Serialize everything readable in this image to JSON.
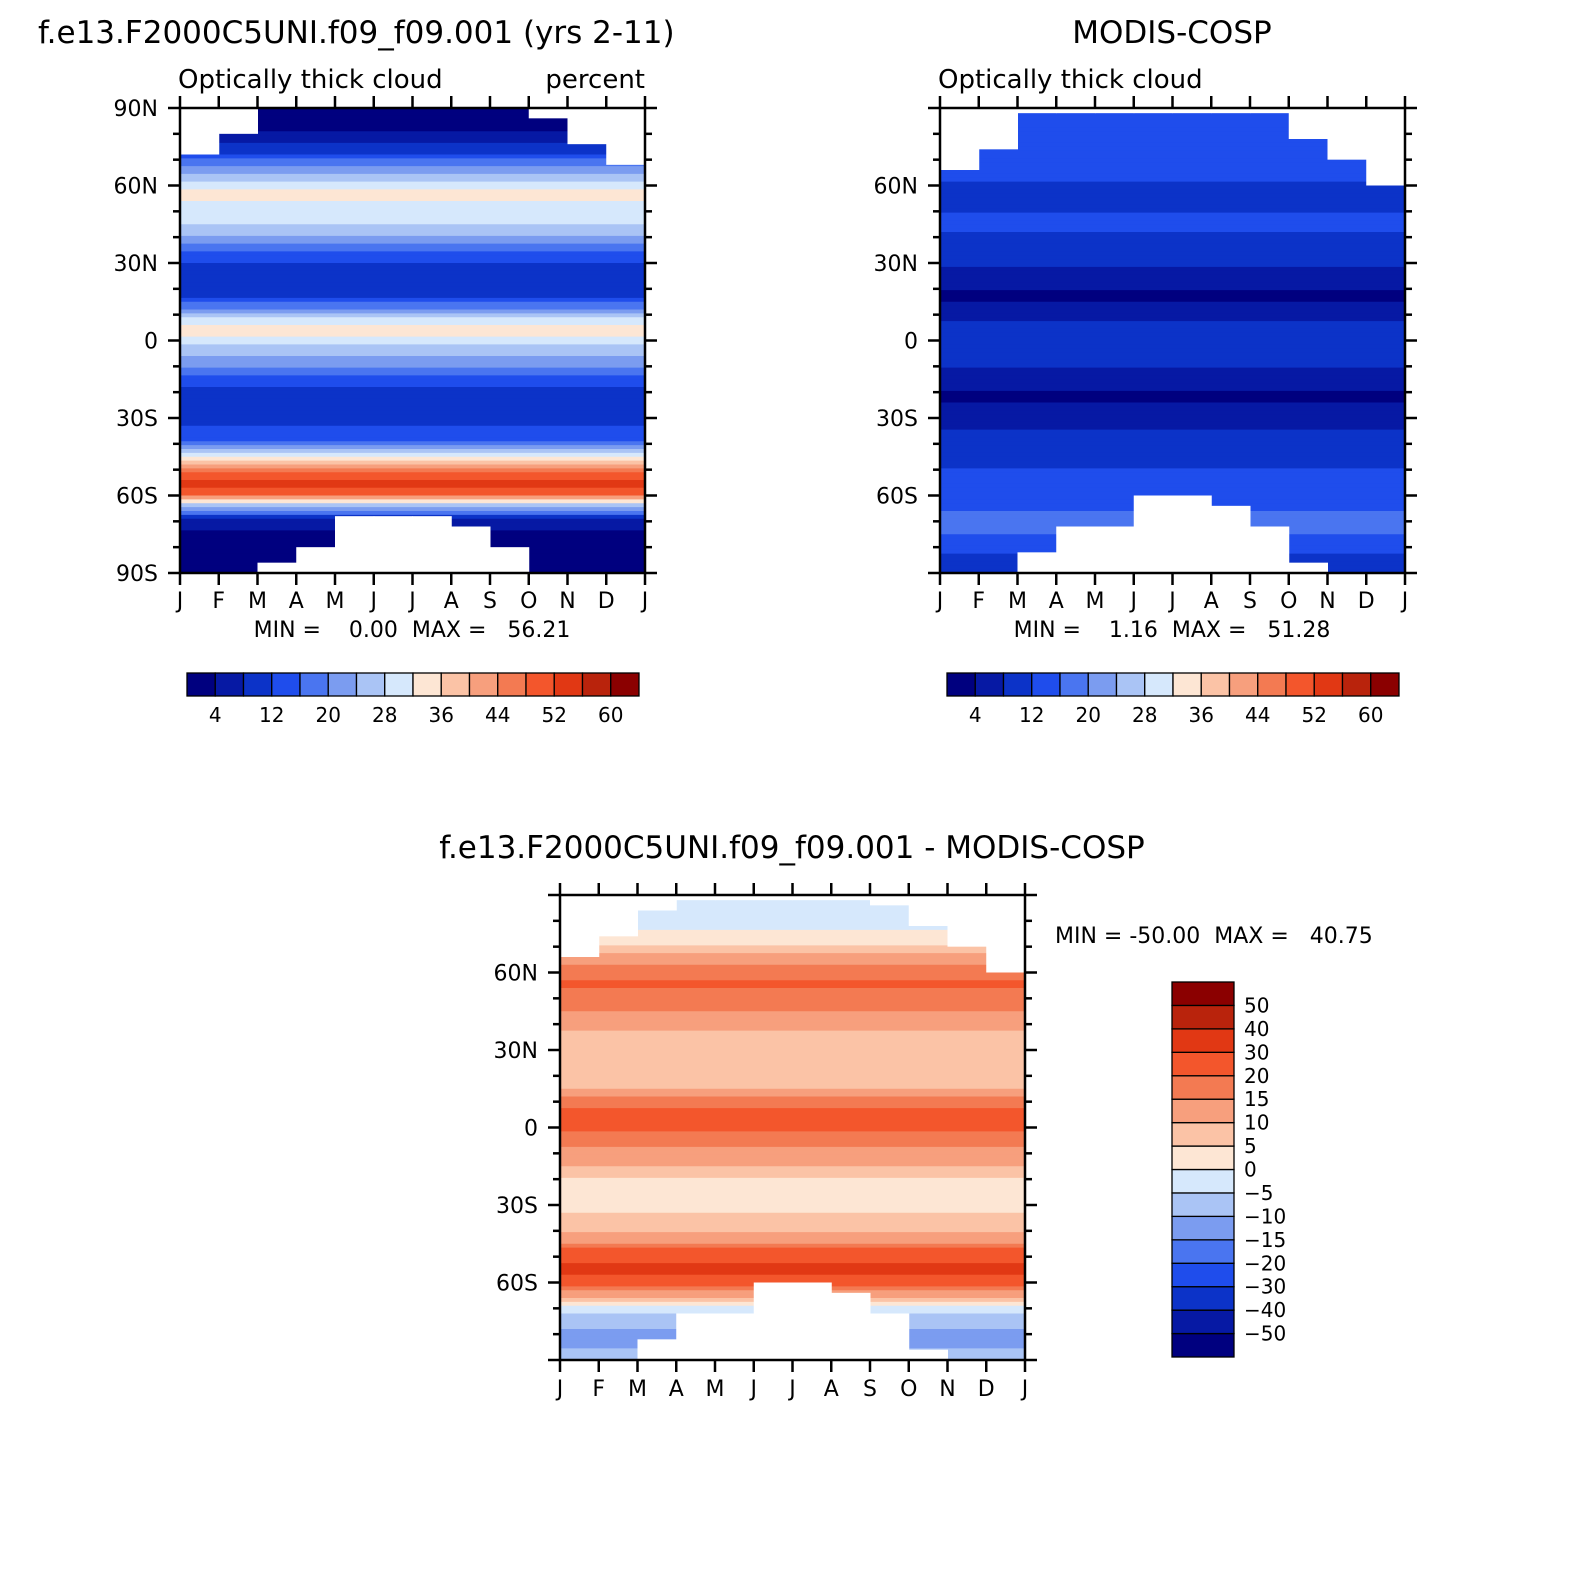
{
  "chart_data": [
    {
      "type": "heatmap",
      "title": "f.e13.F2000C5UNI.f09_f09.001 (yrs 2-11)",
      "subtitle_left": "Optically thick cloud",
      "subtitle_right": "percent",
      "x_ticks": [
        "J",
        "F",
        "M",
        "A",
        "M",
        "J",
        "J",
        "A",
        "S",
        "O",
        "N",
        "D",
        "J"
      ],
      "y_ticks": [
        "90N",
        "60N",
        "30N",
        "0",
        "30S",
        "60S",
        "90S"
      ],
      "ylim": [
        -90,
        90
      ],
      "stats": "MIN =    0.00  MAX =   56.21",
      "colorbar": {
        "tick_labels": [
          "4",
          "12",
          "20",
          "28",
          "36",
          "44",
          "52",
          "60"
        ],
        "levels": [
          0,
          4,
          8,
          12,
          16,
          20,
          24,
          28,
          32,
          36,
          40,
          44,
          48,
          52,
          56,
          60,
          64
        ],
        "colors": [
          "#00007f",
          "#0619a4",
          "#0c33c8",
          "#1f4dec",
          "#4a75f0",
          "#7b9cf0",
          "#aac4f5",
          "#d6e8fc",
          "#fde6d4",
          "#fbc3a6",
          "#f79f7d",
          "#f37a52",
          "#f3562c",
          "#e13814",
          "#b9230c",
          "#8b0000"
        ]
      },
      "profile": [
        {
          "lat": -90,
          "v": 1
        },
        {
          "lat": -80,
          "v": 1
        },
        {
          "lat": -70,
          "v": 6
        },
        {
          "lat": -64,
          "v": 26
        },
        {
          "lat": -60,
          "v": 47
        },
        {
          "lat": -55,
          "v": 54
        },
        {
          "lat": -50,
          "v": 45
        },
        {
          "lat": -44,
          "v": 28
        },
        {
          "lat": -38,
          "v": 14
        },
        {
          "lat": -30,
          "v": 11
        },
        {
          "lat": -22,
          "v": 8
        },
        {
          "lat": -15,
          "v": 14
        },
        {
          "lat": -8,
          "v": 22
        },
        {
          "lat": -3,
          "v": 27
        },
        {
          "lat": 3,
          "v": 34
        },
        {
          "lat": 8,
          "v": 30
        },
        {
          "lat": 13,
          "v": 18
        },
        {
          "lat": 20,
          "v": 8
        },
        {
          "lat": 28,
          "v": 10
        },
        {
          "lat": 35,
          "v": 17
        },
        {
          "lat": 42,
          "v": 26
        },
        {
          "lat": 50,
          "v": 31
        },
        {
          "lat": 58,
          "v": 33
        },
        {
          "lat": 66,
          "v": 22
        },
        {
          "lat": 74,
          "v": 10
        },
        {
          "lat": 82,
          "v": 3
        },
        {
          "lat": 90,
          "v": 1
        }
      ],
      "mask_north_deg": [
        18,
        10,
        0,
        0,
        0,
        0,
        0,
        0,
        0,
        4,
        14,
        22,
        22
      ],
      "mask_south_deg": [
        0,
        0,
        4,
        10,
        22,
        22,
        22,
        18,
        10,
        0,
        0,
        0,
        0
      ]
    },
    {
      "type": "heatmap",
      "title": "MODIS-COSP",
      "subtitle_left": "Optically thick cloud",
      "x_ticks": [
        "J",
        "F",
        "M",
        "A",
        "M",
        "J",
        "J",
        "A",
        "S",
        "O",
        "N",
        "D",
        "J"
      ],
      "y_ticks": [
        "60N",
        "30N",
        "0",
        "30S",
        "60S"
      ],
      "ylim": [
        -90,
        90
      ],
      "stats": "MIN =    1.16  MAX =   51.28",
      "colorbar": {
        "tick_labels": [
          "4",
          "12",
          "20",
          "28",
          "36",
          "44",
          "52",
          "60"
        ],
        "levels": [
          0,
          4,
          8,
          12,
          16,
          20,
          24,
          28,
          32,
          36,
          40,
          44,
          48,
          52,
          56,
          60,
          64
        ],
        "colors": [
          "#00007f",
          "#0619a4",
          "#0c33c8",
          "#1f4dec",
          "#4a75f0",
          "#7b9cf0",
          "#aac4f5",
          "#d6e8fc",
          "#fde6d4",
          "#fbc3a6",
          "#f79f7d",
          "#f37a52",
          "#f3562c",
          "#e13814",
          "#b9230c",
          "#8b0000"
        ]
      },
      "profile": [
        {
          "lat": -90,
          "v": 9
        },
        {
          "lat": -80,
          "v": 13
        },
        {
          "lat": -72,
          "v": 18
        },
        {
          "lat": -66,
          "v": 16
        },
        {
          "lat": -58,
          "v": 13
        },
        {
          "lat": -50,
          "v": 12
        },
        {
          "lat": -40,
          "v": 10
        },
        {
          "lat": -30,
          "v": 6
        },
        {
          "lat": -22,
          "v": 3
        },
        {
          "lat": -14,
          "v": 7
        },
        {
          "lat": -6,
          "v": 9
        },
        {
          "lat": 0,
          "v": 10
        },
        {
          "lat": 6,
          "v": 9
        },
        {
          "lat": 12,
          "v": 5
        },
        {
          "lat": 18,
          "v": 3
        },
        {
          "lat": 26,
          "v": 7
        },
        {
          "lat": 34,
          "v": 10
        },
        {
          "lat": 42,
          "v": 12
        },
        {
          "lat": 50,
          "v": 12
        },
        {
          "lat": 58,
          "v": 11
        },
        {
          "lat": 66,
          "v": 13
        },
        {
          "lat": 74,
          "v": 13
        },
        {
          "lat": 82,
          "v": 14
        },
        {
          "lat": 90,
          "v": 15
        }
      ],
      "mask_north_deg": [
        24,
        16,
        2,
        2,
        2,
        2,
        2,
        2,
        2,
        12,
        20,
        30,
        30
      ],
      "mask_south_deg": [
        0,
        0,
        8,
        18,
        18,
        30,
        30,
        26,
        18,
        4,
        0,
        0,
        0
      ]
    },
    {
      "type": "heatmap",
      "title": "f.e13.F2000C5UNI.f09_f09.001 - MODIS-COSP",
      "x_ticks": [
        "J",
        "F",
        "M",
        "A",
        "M",
        "J",
        "J",
        "A",
        "S",
        "O",
        "N",
        "D",
        "J"
      ],
      "y_ticks": [
        "60N",
        "30N",
        "0",
        "30S",
        "60S"
      ],
      "ylim": [
        -90,
        90
      ],
      "stats": "MIN = -50.00  MAX =   40.75",
      "colorbar": {
        "tick_labels": [
          "50",
          "40",
          "30",
          "20",
          "15",
          "10",
          "5",
          "0",
          "-5",
          "-10",
          "-15",
          "-20",
          "-30",
          "-40",
          "-50"
        ],
        "levels": [
          -60,
          -50,
          -40,
          -30,
          -20,
          -15,
          -10,
          -5,
          0,
          5,
          10,
          15,
          20,
          30,
          40,
          50,
          60
        ],
        "colors": [
          "#00007f",
          "#0619a4",
          "#0c33c8",
          "#1f4dec",
          "#4a75f0",
          "#7b9cf0",
          "#aac4f5",
          "#d6e8fc",
          "#fde6d4",
          "#fbc3a6",
          "#f79f7d",
          "#f37a52",
          "#f3562c",
          "#e13814",
          "#b9230c",
          "#8b0000"
        ]
      },
      "profile": [
        {
          "lat": -90,
          "v": -8
        },
        {
          "lat": -80,
          "v": -12
        },
        {
          "lat": -72,
          "v": -6
        },
        {
          "lat": -66,
          "v": 8
        },
        {
          "lat": -60,
          "v": 26
        },
        {
          "lat": -55,
          "v": 33
        },
        {
          "lat": -50,
          "v": 26
        },
        {
          "lat": -44,
          "v": 14
        },
        {
          "lat": -36,
          "v": 6
        },
        {
          "lat": -28,
          "v": 3
        },
        {
          "lat": -20,
          "v": 5
        },
        {
          "lat": -12,
          "v": 12
        },
        {
          "lat": -4,
          "v": 18
        },
        {
          "lat": 4,
          "v": 24
        },
        {
          "lat": 10,
          "v": 17
        },
        {
          "lat": 16,
          "v": 9
        },
        {
          "lat": 24,
          "v": 5
        },
        {
          "lat": 32,
          "v": 8
        },
        {
          "lat": 40,
          "v": 11
        },
        {
          "lat": 48,
          "v": 17
        },
        {
          "lat": 56,
          "v": 21
        },
        {
          "lat": 64,
          "v": 14
        },
        {
          "lat": 72,
          "v": 4
        },
        {
          "lat": 80,
          "v": -3
        },
        {
          "lat": 90,
          "v": -4
        }
      ],
      "mask_north_deg": [
        24,
        16,
        6,
        2,
        2,
        2,
        2,
        2,
        4,
        12,
        20,
        30,
        30
      ],
      "mask_south_deg": [
        0,
        0,
        8,
        18,
        18,
        30,
        30,
        26,
        18,
        4,
        0,
        0,
        0
      ]
    }
  ]
}
